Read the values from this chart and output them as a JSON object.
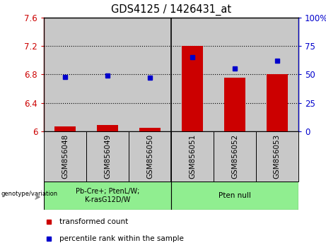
{
  "title": "GDS4125 / 1426431_at",
  "categories": [
    "GSM856048",
    "GSM856049",
    "GSM856050",
    "GSM856051",
    "GSM856052",
    "GSM856053"
  ],
  "red_values": [
    6.07,
    6.09,
    6.05,
    7.2,
    6.75,
    6.8
  ],
  "blue_values": [
    48,
    49,
    47,
    65,
    55,
    62
  ],
  "ylim_left": [
    6.0,
    7.6
  ],
  "ylim_right": [
    0,
    100
  ],
  "yticks_left": [
    6.0,
    6.4,
    6.8,
    7.2,
    7.6
  ],
  "yticks_right": [
    0,
    25,
    50,
    75,
    100
  ],
  "ytick_labels_left": [
    "6",
    "6.4",
    "6.8",
    "7.2",
    "7.6"
  ],
  "ytick_labels_right": [
    "0",
    "25",
    "50",
    "75",
    "100%"
  ],
  "grid_values": [
    6.4,
    6.8,
    7.2
  ],
  "bar_color": "#CC0000",
  "dot_color": "#0000CC",
  "bar_width": 0.5,
  "group1_label": "Pb-Cre+; PtenL/W;\nK-rasG12D/W",
  "group2_label": "Pten null",
  "group_bg_color": "#90EE90",
  "sample_bg_color": "#C8C8C8",
  "legend_red": "transformed count",
  "legend_blue": "percentile rank within the sample",
  "genotype_label": "genotype/variation",
  "axis_color_left": "#CC0000",
  "axis_color_right": "#0000CC",
  "fig_width": 4.61,
  "fig_height": 3.54,
  "dpi": 100
}
